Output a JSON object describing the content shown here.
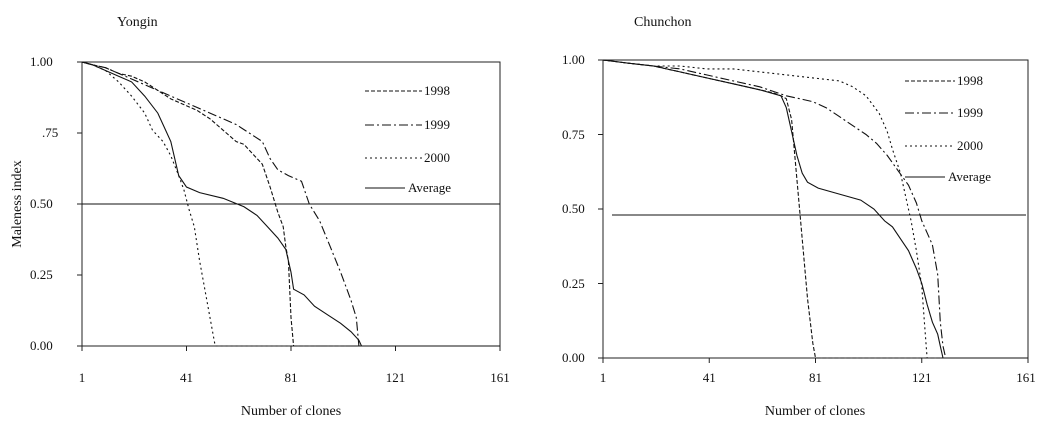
{
  "chart_data": [
    {
      "type": "line",
      "title": "Yongin",
      "xlabel": "Number of clones",
      "ylabel": "Maleness index",
      "xlim": [
        1,
        161
      ],
      "ylim": [
        0,
        1
      ],
      "x_ticks": [
        "1",
        "41",
        "81",
        "121",
        "161"
      ],
      "y_ticks": [
        "0.00",
        "0.25",
        "0.50",
        ".75",
        "1.00"
      ],
      "legend_position": "right",
      "reference_line": 0.5,
      "series": [
        {
          "name": "1998",
          "style": "dashed",
          "points": [
            [
              1,
              1
            ],
            [
              5,
              0.99
            ],
            [
              10,
              0.98
            ],
            [
              15,
              0.96
            ],
            [
              20,
              0.95
            ],
            [
              25,
              0.93
            ],
            [
              30,
              0.9
            ],
            [
              35,
              0.87
            ],
            [
              40,
              0.85
            ],
            [
              45,
              0.83
            ],
            [
              50,
              0.8
            ],
            [
              55,
              0.76
            ],
            [
              60,
              0.72
            ],
            [
              63,
              0.71
            ],
            [
              66,
              0.68
            ],
            [
              70,
              0.64
            ],
            [
              73,
              0.56
            ],
            [
              76,
              0.47
            ],
            [
              78,
              0.42
            ],
            [
              79,
              0.35
            ],
            [
              80,
              0.3
            ],
            [
              81,
              0.1
            ],
            [
              82,
              0
            ],
            [
              161,
              0
            ]
          ]
        },
        {
          "name": "1999",
          "style": "dash-dot",
          "points": [
            [
              1,
              1
            ],
            [
              5,
              0.99
            ],
            [
              10,
              0.98
            ],
            [
              15,
              0.96
            ],
            [
              20,
              0.94
            ],
            [
              25,
              0.92
            ],
            [
              30,
              0.9
            ],
            [
              35,
              0.88
            ],
            [
              40,
              0.86
            ],
            [
              45,
              0.84
            ],
            [
              50,
              0.82
            ],
            [
              55,
              0.8
            ],
            [
              60,
              0.78
            ],
            [
              65,
              0.75
            ],
            [
              70,
              0.72
            ],
            [
              73,
              0.66
            ],
            [
              76,
              0.62
            ],
            [
              80,
              0.6
            ],
            [
              85,
              0.58
            ],
            [
              88,
              0.5
            ],
            [
              92,
              0.44
            ],
            [
              96,
              0.35
            ],
            [
              100,
              0.26
            ],
            [
              104,
              0.16
            ],
            [
              106,
              0.1
            ],
            [
              107,
              0
            ],
            [
              161,
              0
            ]
          ]
        },
        {
          "name": "2000",
          "style": "dotted",
          "points": [
            [
              1,
              1
            ],
            [
              5,
              0.99
            ],
            [
              10,
              0.97
            ],
            [
              15,
              0.93
            ],
            [
              20,
              0.88
            ],
            [
              25,
              0.82
            ],
            [
              28,
              0.76
            ],
            [
              32,
              0.72
            ],
            [
              35,
              0.67
            ],
            [
              38,
              0.6
            ],
            [
              40,
              0.55
            ],
            [
              42,
              0.48
            ],
            [
              44,
              0.42
            ],
            [
              46,
              0.3
            ],
            [
              48,
              0.2
            ],
            [
              50,
              0.1
            ],
            [
              52,
              0
            ],
            [
              161,
              0
            ]
          ]
        },
        {
          "name": "Average",
          "style": "solid",
          "points": [
            [
              1,
              1
            ],
            [
              5,
              0.99
            ],
            [
              10,
              0.97
            ],
            [
              15,
              0.95
            ],
            [
              20,
              0.93
            ],
            [
              25,
              0.88
            ],
            [
              30,
              0.82
            ],
            [
              35,
              0.72
            ],
            [
              38,
              0.6
            ],
            [
              41,
              0.56
            ],
            [
              46,
              0.54
            ],
            [
              55,
              0.52
            ],
            [
              63,
              0.49
            ],
            [
              68,
              0.46
            ],
            [
              72,
              0.42
            ],
            [
              76,
              0.38
            ],
            [
              79,
              0.34
            ],
            [
              81,
              0.26
            ],
            [
              82,
              0.2
            ],
            [
              86,
              0.18
            ],
            [
              90,
              0.14
            ],
            [
              95,
              0.11
            ],
            [
              100,
              0.08
            ],
            [
              104,
              0.05
            ],
            [
              107,
              0.02
            ],
            [
              108,
              0
            ],
            [
              161,
              0
            ]
          ]
        }
      ]
    },
    {
      "type": "line",
      "title": "Chunchon",
      "xlabel": "Number of clones",
      "ylabel": "",
      "xlim": [
        1,
        161
      ],
      "ylim": [
        0,
        1
      ],
      "x_ticks": [
        "1",
        "41",
        "81",
        "121",
        "161"
      ],
      "y_ticks": [
        "0.00",
        "0.25",
        "0.50",
        "0.75",
        "1.00"
      ],
      "legend_position": "right",
      "reference_line": 0.48,
      "series": [
        {
          "name": "1998",
          "style": "dashed",
          "points": [
            [
              1,
              1
            ],
            [
              10,
              0.99
            ],
            [
              20,
              0.98
            ],
            [
              30,
              0.96
            ],
            [
              40,
              0.94
            ],
            [
              50,
              0.92
            ],
            [
              60,
              0.9
            ],
            [
              65,
              0.89
            ],
            [
              68,
              0.88
            ],
            [
              70,
              0.87
            ],
            [
              72,
              0.8
            ],
            [
              74,
              0.6
            ],
            [
              76,
              0.4
            ],
            [
              78,
              0.2
            ],
            [
              80,
              0.05
            ],
            [
              81,
              0
            ],
            [
              161,
              0
            ]
          ]
        },
        {
          "name": "1999",
          "style": "dash-dot",
          "points": [
            [
              1,
              1
            ],
            [
              10,
              0.99
            ],
            [
              20,
              0.98
            ],
            [
              30,
              0.97
            ],
            [
              40,
              0.95
            ],
            [
              50,
              0.93
            ],
            [
              60,
              0.91
            ],
            [
              70,
              0.88
            ],
            [
              75,
              0.87
            ],
            [
              80,
              0.86
            ],
            [
              85,
              0.84
            ],
            [
              90,
              0.81
            ],
            [
              95,
              0.78
            ],
            [
              100,
              0.75
            ],
            [
              104,
              0.72
            ],
            [
              108,
              0.68
            ],
            [
              112,
              0.63
            ],
            [
              116,
              0.58
            ],
            [
              119,
              0.52
            ],
            [
              121,
              0.46
            ],
            [
              123,
              0.42
            ],
            [
              125,
              0.38
            ],
            [
              127,
              0.28
            ],
            [
              128,
              0.12
            ],
            [
              129,
              0.04
            ],
            [
              130,
              0
            ],
            [
              161,
              0
            ]
          ]
        },
        {
          "name": "2000",
          "style": "dotted",
          "points": [
            [
              1,
              1
            ],
            [
              10,
              0.99
            ],
            [
              20,
              0.98
            ],
            [
              30,
              0.98
            ],
            [
              40,
              0.97
            ],
            [
              50,
              0.97
            ],
            [
              60,
              0.96
            ],
            [
              70,
              0.95
            ],
            [
              80,
              0.94
            ],
            [
              90,
              0.93
            ],
            [
              95,
              0.91
            ],
            [
              100,
              0.88
            ],
            [
              105,
              0.82
            ],
            [
              108,
              0.76
            ],
            [
              110,
              0.7
            ],
            [
              113,
              0.62
            ],
            [
              115,
              0.54
            ],
            [
              117,
              0.46
            ],
            [
              119,
              0.36
            ],
            [
              121,
              0.24
            ],
            [
              122,
              0.12
            ],
            [
              123,
              0
            ],
            [
              161,
              0
            ]
          ]
        },
        {
          "name": "Average",
          "style": "solid",
          "points": [
            [
              1,
              1
            ],
            [
              10,
              0.99
            ],
            [
              20,
              0.98
            ],
            [
              30,
              0.96
            ],
            [
              40,
              0.94
            ],
            [
              50,
              0.92
            ],
            [
              60,
              0.9
            ],
            [
              68,
              0.88
            ],
            [
              70,
              0.84
            ],
            [
              72,
              0.76
            ],
            [
              74,
              0.68
            ],
            [
              76,
              0.62
            ],
            [
              78,
              0.59
            ],
            [
              82,
              0.57
            ],
            [
              90,
              0.55
            ],
            [
              98,
              0.53
            ],
            [
              103,
              0.5
            ],
            [
              107,
              0.46
            ],
            [
              110,
              0.44
            ],
            [
              113,
              0.4
            ],
            [
              116,
              0.36
            ],
            [
              119,
              0.3
            ],
            [
              121,
              0.25
            ],
            [
              123,
              0.18
            ],
            [
              125,
              0.12
            ],
            [
              127,
              0.08
            ],
            [
              128,
              0.04
            ],
            [
              129,
              0
            ],
            [
              161,
              0
            ]
          ]
        }
      ]
    }
  ]
}
